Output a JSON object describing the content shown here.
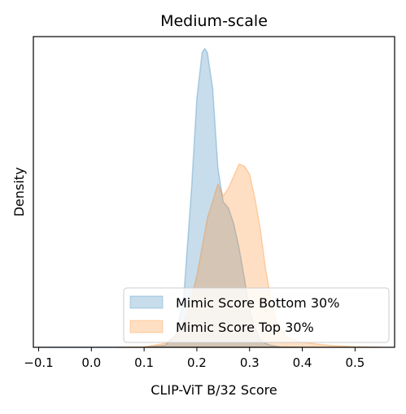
{
  "chart_data": {
    "type": "area",
    "title": "Medium-scale",
    "xlabel": "CLIP-ViT B/32 Score",
    "ylabel": "Density",
    "xlim": [
      -0.11,
      0.575
    ],
    "ylim": [
      0,
      15.6
    ],
    "xticks": [
      -0.1,
      0.0,
      0.1,
      0.2,
      0.3,
      0.4,
      0.5
    ],
    "xtick_labels": [
      "−0.1",
      "0.0",
      "0.1",
      "0.2",
      "0.3",
      "0.4",
      "0.5"
    ],
    "y_ticks_shown": false,
    "grid": false,
    "legend_position": "lower-right",
    "series": [
      {
        "name": "Mimic Score Bottom 30%",
        "color": "#1f77b4",
        "x": [
          -0.1,
          0.0,
          0.1,
          0.14,
          0.16,
          0.175,
          0.19,
          0.2,
          0.21,
          0.215,
          0.22,
          0.23,
          0.24,
          0.25,
          0.26,
          0.27,
          0.28,
          0.29,
          0.3,
          0.31,
          0.32,
          0.33,
          0.34,
          0.36,
          0.4
        ],
        "y": [
          0,
          0,
          0,
          0.1,
          0.6,
          2.5,
          8.0,
          12.5,
          14.8,
          15.0,
          14.8,
          13.0,
          9.0,
          7.3,
          7.0,
          6.2,
          5.0,
          3.5,
          1.9,
          1.0,
          0.4,
          0.2,
          0.1,
          0.02,
          0
        ]
      },
      {
        "name": "Mimic Score Top 30%",
        "color": "#ff7f0e",
        "x": [
          0.05,
          0.1,
          0.14,
          0.16,
          0.18,
          0.2,
          0.22,
          0.24,
          0.25,
          0.26,
          0.27,
          0.28,
          0.29,
          0.3,
          0.31,
          0.32,
          0.33,
          0.34,
          0.35,
          0.37,
          0.4,
          0.45,
          0.5,
          0.55
        ],
        "y": [
          0,
          0.02,
          0.2,
          0.6,
          1.5,
          3.6,
          6.5,
          8.2,
          7.6,
          8.0,
          8.6,
          9.2,
          9.1,
          8.7,
          7.5,
          6.0,
          4.0,
          2.5,
          1.3,
          0.5,
          0.25,
          0.1,
          0.03,
          0
        ]
      }
    ]
  }
}
